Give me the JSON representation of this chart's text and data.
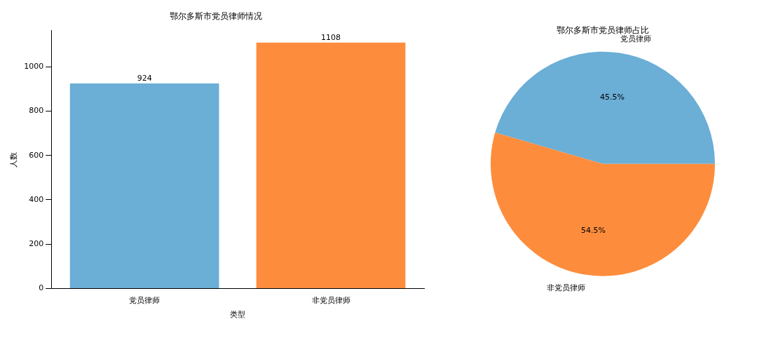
{
  "chart_data": [
    {
      "type": "bar",
      "title": "鄂尔多斯市党员律师情况",
      "xlabel": "类型",
      "ylabel": "人数",
      "categories": [
        "党员律师",
        "非党员律师"
      ],
      "values": [
        924,
        1108
      ],
      "colors": [
        "#6baed6",
        "#fd8d3c"
      ],
      "ylim": [
        0,
        1163
      ],
      "yticks": [
        0,
        200,
        400,
        600,
        800,
        1000
      ],
      "data_labels": true,
      "grid": false,
      "legend": false
    },
    {
      "type": "pie",
      "title": "鄂尔多斯市党员律师占比",
      "categories": [
        "党员律师",
        "非党员律师"
      ],
      "values": [
        45.5,
        54.5
      ],
      "value_labels": [
        "45.5%",
        "54.5%"
      ],
      "colors": [
        "#6baed6",
        "#fd8d3c"
      ],
      "legend": false
    }
  ]
}
